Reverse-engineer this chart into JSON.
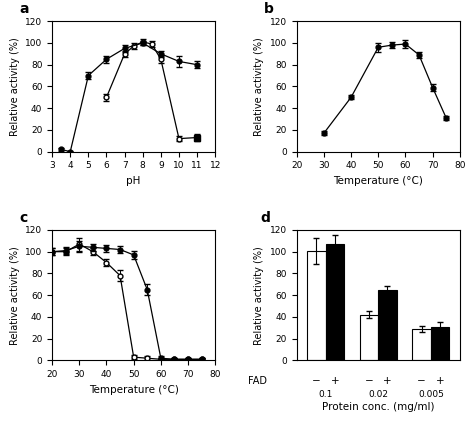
{
  "panel_a": {
    "filled_circle": {
      "x": [
        3.5,
        4,
        5,
        6,
        7,
        8,
        9,
        10,
        11
      ],
      "y": [
        2,
        0,
        70,
        85,
        95,
        100,
        90,
        83,
        80
      ],
      "yerr": [
        1,
        1,
        3,
        3,
        3,
        2,
        3,
        5,
        3
      ]
    },
    "open_circle": {
      "x": [
        6,
        7,
        7.5,
        8,
        8.5,
        9,
        10,
        11
      ],
      "y": [
        50,
        90,
        97,
        101,
        99,
        85,
        12,
        13
      ],
      "yerr": [
        3,
        3,
        3,
        3,
        3,
        3,
        2,
        2
      ]
    },
    "filled_square": {
      "x": [
        11
      ],
      "y": [
        13
      ],
      "yerr": [
        3
      ]
    },
    "xlabel": "pH",
    "ylabel": "Relative activity (%)",
    "xlim": [
      3,
      12
    ],
    "ylim": [
      0,
      120
    ],
    "xticks": [
      3,
      4,
      5,
      6,
      7,
      8,
      9,
      10,
      11,
      12
    ],
    "yticks": [
      0,
      20,
      40,
      60,
      80,
      100,
      120
    ],
    "label": "a"
  },
  "panel_b": {
    "filled_circle": {
      "x": [
        30,
        40,
        50,
        55,
        60,
        65,
        70,
        75
      ],
      "y": [
        17,
        50,
        96,
        98,
        99,
        89,
        59,
        31
      ],
      "yerr": [
        2,
        2,
        4,
        3,
        4,
        3,
        3,
        2
      ]
    },
    "xlabel": "Temperature (°C)",
    "ylabel": "Relative activity (%)",
    "xlim": [
      20,
      80
    ],
    "ylim": [
      0,
      120
    ],
    "xticks": [
      20,
      30,
      40,
      50,
      60,
      70,
      80
    ],
    "yticks": [
      0,
      20,
      40,
      60,
      80,
      100,
      120
    ],
    "label": "b"
  },
  "panel_c": {
    "filled_circle": {
      "x": [
        20,
        25,
        30,
        35,
        40,
        45,
        50,
        55,
        60,
        65,
        70,
        75
      ],
      "y": [
        100,
        101,
        105,
        104,
        103,
        102,
        97,
        65,
        2,
        1,
        1,
        1
      ],
      "yerr": [
        3,
        3,
        5,
        3,
        3,
        3,
        4,
        5,
        2,
        1,
        1,
        1
      ]
    },
    "open_circle": {
      "x": [
        20,
        25,
        30,
        35,
        40,
        45,
        50,
        55,
        60,
        65,
        70,
        75
      ],
      "y": [
        100,
        100,
        107,
        100,
        90,
        78,
        3,
        2,
        1,
        1,
        1,
        1
      ],
      "yerr": [
        3,
        3,
        6,
        3,
        3,
        5,
        2,
        2,
        1,
        1,
        1,
        1
      ]
    },
    "xlabel": "Temperature (°C)",
    "ylabel": "Relative activity (%)",
    "xlim": [
      20,
      80
    ],
    "ylim": [
      0,
      120
    ],
    "xticks": [
      20,
      30,
      40,
      50,
      60,
      70,
      80
    ],
    "yticks": [
      0,
      20,
      40,
      60,
      80,
      100,
      120
    ],
    "label": "c"
  },
  "panel_d": {
    "groups": [
      "0.1",
      "0.02",
      "0.005"
    ],
    "minus_fad": [
      101,
      42,
      29
    ],
    "plus_fad": [
      107,
      65,
      31
    ],
    "minus_yerr": [
      12,
      3,
      3
    ],
    "plus_yerr": [
      8,
      3,
      4
    ],
    "fad_minus_labels": [
      "-",
      "-",
      "-"
    ],
    "fad_plus_labels": [
      "+",
      "+",
      "+"
    ],
    "xlabel": "Protein conc. (mg/ml)",
    "ylabel": "Relative activity (%)",
    "ylim": [
      0,
      120
    ],
    "yticks": [
      0,
      20,
      40,
      60,
      80,
      100,
      120
    ],
    "label": "d"
  }
}
